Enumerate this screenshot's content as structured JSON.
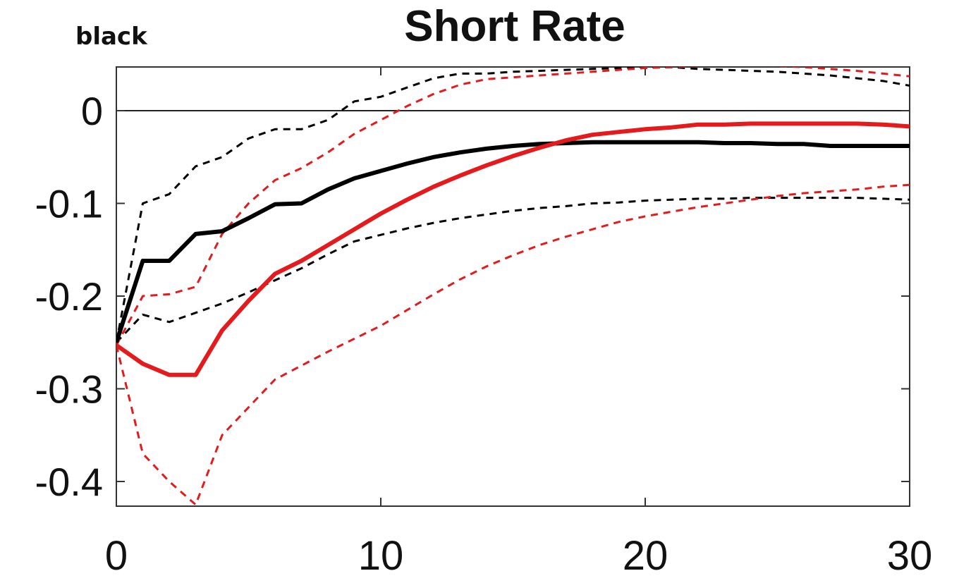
{
  "header": {
    "title": "Short Rate",
    "corner_label": "black"
  },
  "chart_data": {
    "type": "line",
    "title": "Short Rate",
    "xlabel": "",
    "ylabel": "",
    "xlim": [
      0,
      30
    ],
    "ylim": [
      -0.43,
      0.05
    ],
    "x_ticks": [
      0,
      10,
      20,
      30
    ],
    "x_tick_labels": [
      "0",
      "10",
      "20",
      "30"
    ],
    "y_ticks": [
      0,
      -0.1,
      -0.2,
      -0.3,
      -0.4
    ],
    "y_tick_labels": [
      "0",
      "-0.1",
      "-0.2",
      "-0.3",
      "-0.4"
    ],
    "zero_line": 0,
    "grid": false,
    "x": [
      0,
      1,
      2,
      3,
      4,
      5,
      6,
      7,
      8,
      9,
      10,
      11,
      12,
      13,
      14,
      15,
      16,
      17,
      18,
      19,
      20,
      21,
      22,
      23,
      24,
      25,
      26,
      27,
      28,
      29,
      30
    ],
    "series": [
      {
        "role": "estimate",
        "color": "#000000",
        "style": "solid",
        "values": [
          -0.25,
          -0.162,
          -0.162,
          -0.133,
          -0.13,
          -0.116,
          -0.101,
          -0.1,
          -0.085,
          -0.073,
          -0.065,
          -0.057,
          -0.05,
          -0.045,
          -0.041,
          -0.038,
          -0.036,
          -0.035,
          -0.034,
          -0.034,
          -0.034,
          -0.034,
          -0.034,
          -0.035,
          -0.035,
          -0.036,
          -0.036,
          -0.038,
          -0.038,
          -0.038,
          -0.038
        ]
      },
      {
        "role": "upper band",
        "color": "#000000",
        "style": "dashed",
        "values": [
          -0.25,
          -0.1,
          -0.09,
          -0.06,
          -0.05,
          -0.03,
          -0.02,
          -0.02,
          -0.01,
          0.01,
          0.015,
          0.025,
          0.035,
          0.04,
          0.04,
          0.042,
          0.043,
          0.044,
          0.045,
          0.046,
          0.047,
          0.047,
          0.045,
          0.044,
          0.043,
          0.042,
          0.04,
          0.038,
          0.035,
          0.032,
          0.027
        ]
      },
      {
        "role": "lower band",
        "color": "#000000",
        "style": "dashed",
        "values": [
          -0.25,
          -0.22,
          -0.228,
          -0.218,
          -0.208,
          -0.196,
          -0.183,
          -0.17,
          -0.155,
          -0.141,
          -0.134,
          -0.127,
          -0.121,
          -0.116,
          -0.112,
          -0.108,
          -0.105,
          -0.103,
          -0.1,
          -0.099,
          -0.097,
          -0.096,
          -0.095,
          -0.095,
          -0.094,
          -0.094,
          -0.094,
          -0.094,
          -0.094,
          -0.095,
          -0.096
        ]
      },
      {
        "role": "estimate",
        "color": "#e41a1c",
        "style": "solid",
        "values": [
          -0.253,
          -0.273,
          -0.285,
          -0.285,
          -0.237,
          -0.205,
          -0.176,
          -0.162,
          -0.145,
          -0.128,
          -0.111,
          -0.096,
          -0.082,
          -0.07,
          -0.059,
          -0.049,
          -0.04,
          -0.032,
          -0.026,
          -0.023,
          -0.02,
          -0.018,
          -0.015,
          -0.015,
          -0.014,
          -0.014,
          -0.014,
          -0.014,
          -0.014,
          -0.015,
          -0.017
        ]
      },
      {
        "role": "upper band",
        "color": "#e41a1c",
        "style": "dashed",
        "values": [
          -0.253,
          -0.2,
          -0.198,
          -0.19,
          -0.133,
          -0.1,
          -0.075,
          -0.062,
          -0.045,
          -0.025,
          -0.01,
          0.005,
          0.018,
          0.028,
          0.034,
          0.036,
          0.038,
          0.04,
          0.042,
          0.044,
          0.046,
          0.047,
          0.048,
          0.049,
          0.049,
          0.048,
          0.047,
          0.045,
          0.043,
          0.04,
          0.037
        ]
      },
      {
        "role": "lower band",
        "color": "#e41a1c",
        "style": "dashed",
        "values": [
          -0.253,
          -0.37,
          -0.4,
          -0.425,
          -0.35,
          -0.32,
          -0.29,
          -0.275,
          -0.26,
          -0.246,
          -0.232,
          -0.215,
          -0.198,
          -0.182,
          -0.168,
          -0.156,
          -0.145,
          -0.136,
          -0.128,
          -0.12,
          -0.114,
          -0.109,
          -0.104,
          -0.1,
          -0.096,
          -0.092,
          -0.089,
          -0.087,
          -0.085,
          -0.082,
          -0.08
        ]
      }
    ]
  }
}
